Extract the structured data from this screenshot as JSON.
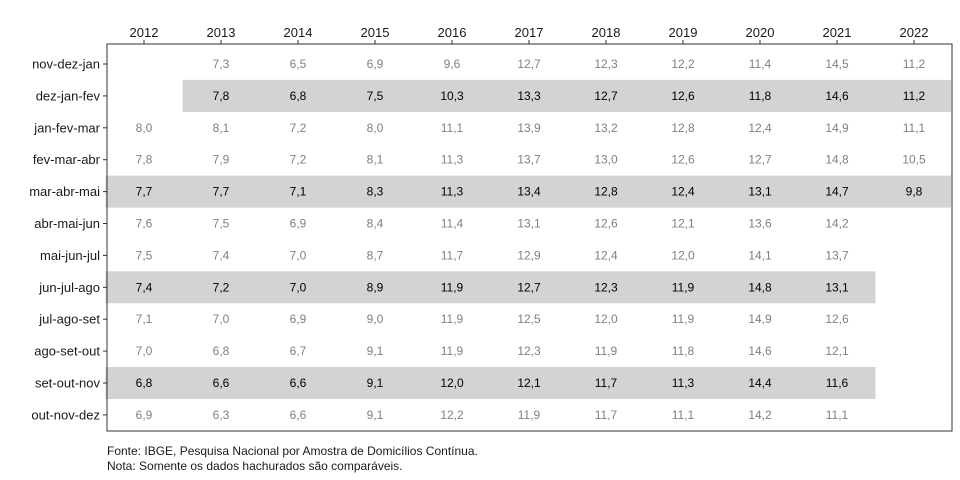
{
  "chart_data": {
    "type": "table",
    "columns": [
      "2012",
      "2013",
      "2014",
      "2015",
      "2016",
      "2017",
      "2018",
      "2019",
      "2020",
      "2021",
      "2022"
    ],
    "rows": [
      {
        "label": "nov-dez-jan",
        "highlight": false,
        "values": [
          null,
          "7,3",
          "6,5",
          "6,9",
          "9,6",
          "12,7",
          "12,3",
          "12,2",
          "11,4",
          "14,5",
          "11,2"
        ],
        "highlight_from": null,
        "highlight_to": null
      },
      {
        "label": "dez-jan-fev",
        "highlight": true,
        "values": [
          null,
          "7,8",
          "6,8",
          "7,5",
          "10,3",
          "13,3",
          "12,7",
          "12,6",
          "11,8",
          "14,6",
          "11,2"
        ],
        "highlight_from": 1,
        "highlight_to": 10
      },
      {
        "label": "jan-fev-mar",
        "highlight": false,
        "values": [
          "8,0",
          "8,1",
          "7,2",
          "8,0",
          "11,1",
          "13,9",
          "13,2",
          "12,8",
          "12,4",
          "14,9",
          "11,1"
        ],
        "highlight_from": null,
        "highlight_to": null
      },
      {
        "label": "fev-mar-abr",
        "highlight": false,
        "values": [
          "7,8",
          "7,9",
          "7,2",
          "8,1",
          "11,3",
          "13,7",
          "13,0",
          "12,6",
          "12,7",
          "14,8",
          "10,5"
        ],
        "highlight_from": null,
        "highlight_to": null
      },
      {
        "label": "mar-abr-mai",
        "highlight": true,
        "values": [
          "7,7",
          "7,7",
          "7,1",
          "8,3",
          "11,3",
          "13,4",
          "12,8",
          "12,4",
          "13,1",
          "14,7",
          "9,8"
        ],
        "highlight_from": 0,
        "highlight_to": 10
      },
      {
        "label": "abr-mai-jun",
        "highlight": false,
        "values": [
          "7,6",
          "7,5",
          "6,9",
          "8,4",
          "11,4",
          "13,1",
          "12,6",
          "12,1",
          "13,6",
          "14,2",
          null
        ],
        "highlight_from": null,
        "highlight_to": null
      },
      {
        "label": "mai-jun-jul",
        "highlight": false,
        "values": [
          "7,5",
          "7,4",
          "7,0",
          "8,7",
          "11,7",
          "12,9",
          "12,4",
          "12,0",
          "14,1",
          "13,7",
          null
        ],
        "highlight_from": null,
        "highlight_to": null
      },
      {
        "label": "jun-jul-ago",
        "highlight": true,
        "values": [
          "7,4",
          "7,2",
          "7,0",
          "8,9",
          "11,9",
          "12,7",
          "12,3",
          "11,9",
          "14,8",
          "13,1",
          null
        ],
        "highlight_from": 0,
        "highlight_to": 9
      },
      {
        "label": "jul-ago-set",
        "highlight": false,
        "values": [
          "7,1",
          "7,0",
          "6,9",
          "9,0",
          "11,9",
          "12,5",
          "12,0",
          "11,9",
          "14,9",
          "12,6",
          null
        ],
        "highlight_from": null,
        "highlight_to": null
      },
      {
        "label": "ago-set-out",
        "highlight": false,
        "values": [
          "7,0",
          "6,8",
          "6,7",
          "9,1",
          "11,9",
          "12,3",
          "11,9",
          "11,8",
          "14,6",
          "12,1",
          null
        ],
        "highlight_from": null,
        "highlight_to": null
      },
      {
        "label": "set-out-nov",
        "highlight": true,
        "values": [
          "6,8",
          "6,6",
          "6,6",
          "9,1",
          "12,0",
          "12,1",
          "11,7",
          "11,3",
          "14,4",
          "11,6",
          null
        ],
        "highlight_from": 0,
        "highlight_to": 9
      },
      {
        "label": "out-nov-dez",
        "highlight": false,
        "values": [
          "6,9",
          "6,3",
          "6,6",
          "9,1",
          "12,2",
          "11,9",
          "11,7",
          "11,1",
          "14,2",
          "11,1",
          null
        ],
        "highlight_from": null,
        "highlight_to": null
      }
    ],
    "highlight_color": "#d3d3d3",
    "highlight_text_color": "#000000",
    "normal_text_color": "#808080",
    "source": "Fonte: IBGE, Pesquisa Nacional por Amostra de Domicílios Contínua.",
    "note": "Nota: Somente os dados hachurados são comparáveis."
  }
}
